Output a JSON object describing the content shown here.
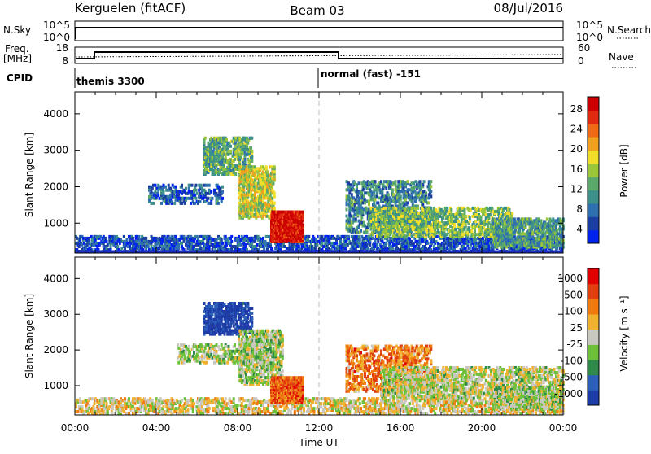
{
  "header": {
    "station": "Kerguelen (fitACF)",
    "beam": "Beam 03",
    "date": "08/Jul/2016"
  },
  "summary_panels": {
    "nsky_label": "N.Sky",
    "nsky_ticks": [
      "10^5",
      "10^0"
    ],
    "nsearch_label": "N.Search",
    "nsearch_ticks": [
      "10^5",
      "10^0"
    ],
    "freq_label_1": "Freq.",
    "freq_label_2": "[MHz]",
    "freq_ticks": [
      "18",
      "8"
    ],
    "nave_label": "Nave",
    "nave_ticks": [
      "60",
      "0"
    ],
    "cpid_label": "CPID",
    "cpid_segments": [
      "themis 3300",
      "normal (fast) -151"
    ]
  },
  "chart_data": [
    {
      "type": "heatmap",
      "name": "power",
      "ylabel": "Slant Range [km]",
      "xlabel": "",
      "ylim": [
        180,
        4600
      ],
      "xlim": [
        0,
        24
      ],
      "yticks": [
        "1000",
        "2000",
        "3000",
        "4000"
      ],
      "colorbar_label": "Power [dB]",
      "colorbar_ticks": [
        "28",
        "24",
        "20",
        "16",
        "12",
        "8",
        "4"
      ],
      "colorbar_colors": [
        "#0022ee",
        "#1a3fa0",
        "#2e6fb0",
        "#3d8f8a",
        "#5aa86a",
        "#9cc63a",
        "#f2de2a",
        "#f2a020",
        "#ee6a16",
        "#e02a10",
        "#cc0000"
      ],
      "blobs": [
        {
          "t0": 0.0,
          "t1": 24.0,
          "r0": 180,
          "r1": 600,
          "level": 0.15,
          "density": 0.35
        },
        {
          "t0": 6.3,
          "t1": 8.7,
          "r0": 2300,
          "r1": 3300,
          "level": 0.4,
          "density": 0.4
        },
        {
          "t0": 8.0,
          "t1": 9.8,
          "r0": 1100,
          "r1": 2500,
          "level": 0.55,
          "density": 0.45
        },
        {
          "t0": 9.6,
          "t1": 11.2,
          "r0": 450,
          "r1": 1300,
          "level": 0.95,
          "density": 0.85
        },
        {
          "t0": 3.6,
          "t1": 7.2,
          "r0": 1500,
          "r1": 2000,
          "level": 0.2,
          "density": 0.25
        },
        {
          "t0": 13.3,
          "t1": 17.5,
          "r0": 700,
          "r1": 2100,
          "level": 0.3,
          "density": 0.3
        },
        {
          "t0": 14.5,
          "t1": 21.5,
          "r0": 600,
          "r1": 1400,
          "level": 0.45,
          "density": 0.35
        },
        {
          "t0": 20.5,
          "t1": 24.0,
          "r0": 300,
          "r1": 1100,
          "level": 0.35,
          "density": 0.45
        }
      ]
    },
    {
      "type": "heatmap",
      "name": "velocity",
      "ylabel": "Slant Range [km]",
      "xlabel": "Time UT",
      "ylim": [
        180,
        4600
      ],
      "xlim": [
        0,
        24
      ],
      "yticks": [
        "1000",
        "2000",
        "3000",
        "4000"
      ],
      "xticks": [
        "00:00",
        "04:00",
        "08:00",
        "12:00",
        "16:00",
        "20:00",
        "00:00"
      ],
      "colorbar_label": "Velocity [m s⁻¹]",
      "colorbar_ticks": [
        "1000",
        "500",
        "100",
        "25",
        "-25",
        "-100",
        "-500",
        "-1000"
      ],
      "colorbar_colors": [
        "#1e3ca8",
        "#2b5fb8",
        "#2f8a4a",
        "#6cc03a",
        "#c8c8c0",
        "#f0b030",
        "#ee7a10",
        "#e04010",
        "#e00000"
      ],
      "blobs": [
        {
          "t0": 0.0,
          "t1": 24.0,
          "r0": 180,
          "r1": 600,
          "level": 0.55,
          "density": 0.3
        },
        {
          "t0": 6.3,
          "t1": 8.7,
          "r0": 2400,
          "r1": 3300,
          "level": 0.05,
          "density": 0.4
        },
        {
          "t0": 8.0,
          "t1": 10.2,
          "r0": 1000,
          "r1": 2500,
          "level": 0.45,
          "density": 0.4
        },
        {
          "t0": 9.6,
          "t1": 11.2,
          "r0": 500,
          "r1": 1200,
          "level": 0.78,
          "density": 0.85
        },
        {
          "t0": 5.0,
          "t1": 9.5,
          "r0": 1600,
          "r1": 2100,
          "level": 0.45,
          "density": 0.25
        },
        {
          "t0": 13.3,
          "t1": 17.5,
          "r0": 800,
          "r1": 2100,
          "level": 0.72,
          "density": 0.3
        },
        {
          "t0": 15.0,
          "t1": 24.0,
          "r0": 600,
          "r1": 1500,
          "level": 0.48,
          "density": 0.35
        },
        {
          "t0": 20.5,
          "t1": 24.0,
          "r0": 300,
          "r1": 900,
          "level": 0.45,
          "density": 0.45
        }
      ]
    }
  ]
}
